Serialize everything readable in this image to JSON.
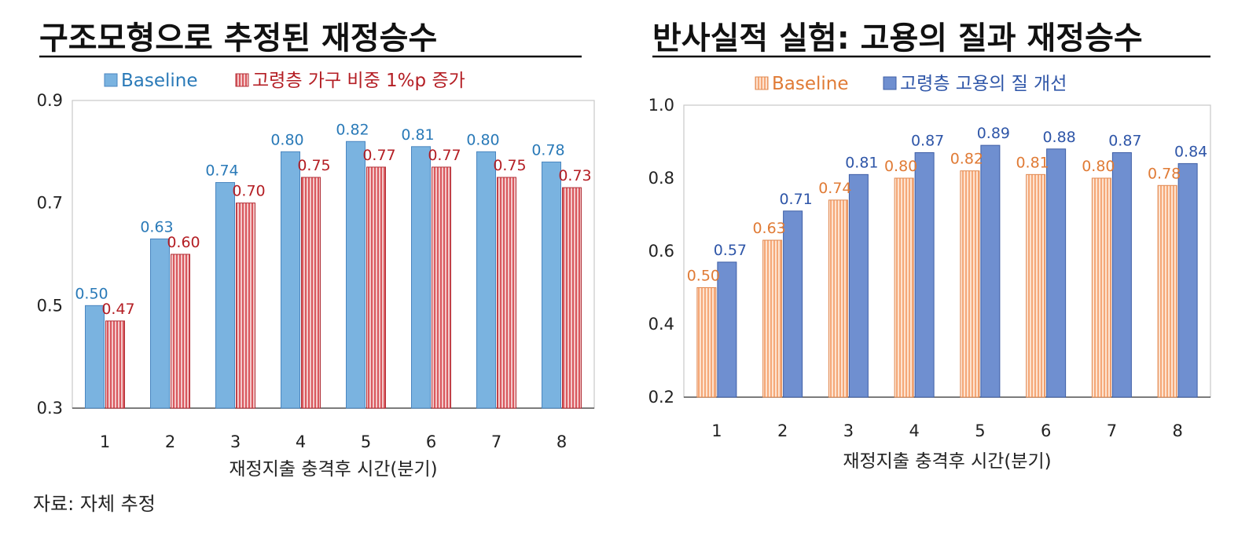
{
  "source_note": "자료: 자체 추정",
  "chart_data": [
    {
      "type": "bar",
      "title": "구조모형으로 추정된 재정승수",
      "xlabel": "재정지출 충격후 시간(분기)",
      "ylabel": "",
      "categories": [
        "1",
        "2",
        "3",
        "4",
        "5",
        "6",
        "7",
        "8"
      ],
      "ylim": [
        0.3,
        0.9
      ],
      "yticks": [
        "0.9",
        "0.7",
        "0.5",
        "0.3"
      ],
      "legend_position": "top",
      "grid": false,
      "series": [
        {
          "name": "Baseline",
          "values": [
            0.5,
            0.63,
            0.74,
            0.8,
            0.82,
            0.81,
            0.8,
            0.78
          ],
          "labels": [
            "0.50",
            "0.63",
            "0.74",
            "0.80",
            "0.82",
            "0.81",
            "0.80",
            "0.78"
          ],
          "color": "#7ab3e0",
          "stroke": "#4a86c0",
          "label_color": "#2a7ab8",
          "pattern": "solid"
        },
        {
          "name": "고령층 가구 비중 1%p 증가",
          "values": [
            0.47,
            0.6,
            0.7,
            0.75,
            0.77,
            0.77,
            0.75,
            0.73
          ],
          "labels": [
            "0.47",
            "0.60",
            "0.70",
            "0.75",
            "0.77",
            "0.77",
            "0.75",
            "0.73"
          ],
          "color": "#d9585e",
          "stroke": "#b02e36",
          "label_color": "#b41e24",
          "pattern": "hatched"
        }
      ]
    },
    {
      "type": "bar",
      "title": "반사실적 실험: 고용의 질과 재정승수",
      "xlabel": "재정지출 충격후 시간(분기)",
      "ylabel": "",
      "categories": [
        "1",
        "2",
        "3",
        "4",
        "5",
        "6",
        "7",
        "8"
      ],
      "ylim": [
        0.2,
        1.0
      ],
      "yticks": [
        "1.0",
        "0.8",
        "0.6",
        "0.4",
        "0.2"
      ],
      "legend_position": "top",
      "grid": false,
      "series": [
        {
          "name": "Baseline",
          "values": [
            0.5,
            0.63,
            0.74,
            0.8,
            0.82,
            0.81,
            0.8,
            0.78
          ],
          "labels": [
            "0.50",
            "0.63",
            "0.74",
            "0.80",
            "0.82",
            "0.81",
            "0.80",
            "0.78"
          ],
          "color": "#f5a878",
          "stroke": "#e08850",
          "label_color": "#e07b36",
          "pattern": "hatched"
        },
        {
          "name": "고령층 고용의 질 개선",
          "values": [
            0.57,
            0.71,
            0.81,
            0.87,
            0.89,
            0.88,
            0.87,
            0.84
          ],
          "labels": [
            "0.57",
            "0.71",
            "0.81",
            "0.87",
            "0.89",
            "0.88",
            "0.87",
            "0.84"
          ],
          "color": "#6f8fd0",
          "stroke": "#3f5fa6",
          "label_color": "#2f56a8",
          "pattern": "solid"
        }
      ]
    }
  ]
}
